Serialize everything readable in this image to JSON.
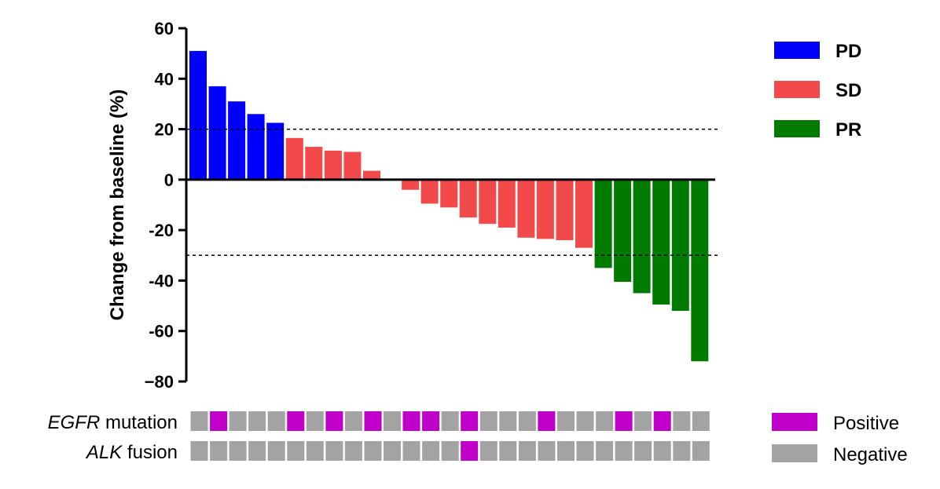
{
  "chart_data": {
    "type": "bar",
    "ylabel": "Change from baseline (%)",
    "ylim": [
      -80,
      60
    ],
    "yticks": [
      60,
      40,
      20,
      0,
      -20,
      -40,
      -60,
      -80
    ],
    "ytick_labels": [
      "60",
      "40",
      "20",
      "0",
      "-20",
      "-40",
      "-60",
      "−80"
    ],
    "reference_lines": [
      20,
      -30
    ],
    "values": [
      51,
      37,
      31,
      26,
      22.5,
      16.5,
      13,
      11.5,
      11,
      3.5,
      0,
      -4,
      -9.5,
      -11,
      -15,
      -17.5,
      -19,
      -23,
      -23.5,
      -24,
      -27,
      -35,
      -40.5,
      -45,
      -49.5,
      -52,
      -72
    ],
    "response": [
      "PD",
      "PD",
      "PD",
      "PD",
      "PD",
      "SD",
      "SD",
      "SD",
      "SD",
      "SD",
      "SD",
      "SD",
      "SD",
      "SD",
      "SD",
      "SD",
      "SD",
      "SD",
      "SD",
      "SD",
      "SD",
      "PR",
      "PR",
      "PR",
      "PR",
      "PR",
      "PR"
    ],
    "legend": [
      {
        "key": "PD",
        "label": "PD",
        "color": "#0000ff"
      },
      {
        "key": "SD",
        "label": "SD",
        "color": "#f24a4a"
      },
      {
        "key": "PR",
        "label": "PR",
        "color": "#007a00"
      }
    ],
    "legend_position": "top-right",
    "grid": false
  },
  "tracks": [
    {
      "label_italic": "EGFR",
      "label_rest": " mutation",
      "status": [
        "Negative",
        "Positive",
        "Negative",
        "Negative",
        "Negative",
        "Positive",
        "Negative",
        "Positive",
        "Negative",
        "Positive",
        "Negative",
        "Positive",
        "Positive",
        "Negative",
        "Positive",
        "Negative",
        "Negative",
        "Negative",
        "Positive",
        "Negative",
        "Negative",
        "Negative",
        "Positive",
        "Negative",
        "Positive",
        "Negative",
        "Negative"
      ]
    },
    {
      "label_italic": "ALK",
      "label_rest": " fusion",
      "status": [
        "Negative",
        "Negative",
        "Negative",
        "Negative",
        "Negative",
        "Negative",
        "Negative",
        "Negative",
        "Negative",
        "Negative",
        "Negative",
        "Negative",
        "Negative",
        "Negative",
        "Positive",
        "Negative",
        "Negative",
        "Negative",
        "Negative",
        "Negative",
        "Negative",
        "Negative",
        "Negative",
        "Negative",
        "Negative",
        "Negative",
        "Negative"
      ]
    }
  ],
  "track_legend": [
    {
      "key": "Positive",
      "label": "Positive",
      "color": "#c000c8"
    },
    {
      "key": "Negative",
      "label": "Negative",
      "color": "#a3a3a3"
    }
  ]
}
